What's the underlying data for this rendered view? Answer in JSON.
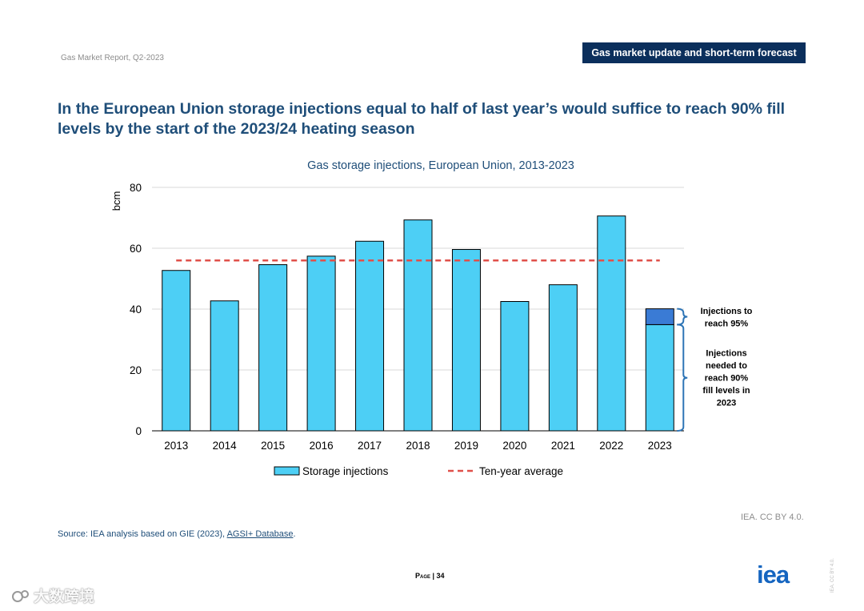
{
  "header": {
    "report_name": "Gas Market Report, Q2-2023",
    "section_badge": "Gas market update and short-term forecast"
  },
  "headline": "In the European Union storage injections equal to half of last year’s would suffice to reach 90% fill levels by the start of the 2023/24 heating season",
  "chart_data": {
    "type": "bar",
    "title": "Gas storage injections, European Union, 2013-2023",
    "ylabel": "bcm",
    "xlabel": "",
    "ylim": [
      0,
      80
    ],
    "yticks": [
      0,
      20,
      40,
      60,
      80
    ],
    "grid": true,
    "categories": [
      "2013",
      "2014",
      "2015",
      "2016",
      "2017",
      "2018",
      "2019",
      "2020",
      "2021",
      "2022",
      "2023"
    ],
    "series": [
      {
        "name": "Storage injections",
        "values": [
          52.7,
          42.7,
          54.6,
          57.4,
          62.3,
          69.3,
          59.6,
          42.5,
          48.0,
          70.6,
          34.9
        ],
        "color": "#4dcff5"
      },
      {
        "name": "Injections to reach 95%",
        "values": [
          0,
          0,
          0,
          0,
          0,
          0,
          0,
          0,
          0,
          0,
          5.2
        ],
        "color": "#3a7bd5"
      }
    ],
    "reference_line": {
      "name": "Ten-year average",
      "value": 56,
      "color": "#e0504a"
    },
    "legend": {
      "placement": "bottom",
      "items": [
        {
          "label": "Storage injections",
          "type": "bar",
          "color": "#4dcff5"
        },
        {
          "label": "Ten-year average",
          "type": "dashed-line",
          "color": "#e0504a"
        }
      ]
    },
    "annotations": [
      {
        "range": [
          34.9,
          40.1
        ],
        "lines": [
          "Injections to",
          "reach 95%"
        ]
      },
      {
        "range": [
          0,
          34.9
        ],
        "lines": [
          "Injections",
          "needed to",
          "reach 90%",
          "fill levels in",
          "2023"
        ]
      }
    ]
  },
  "footer": {
    "credit": "IEA. CC BY 4.0.",
    "source_prefix": "Source: IEA analysis based on GIE (2023), ",
    "source_link": "AGSI+ Database",
    "source_suffix": ".",
    "page_label": "Page",
    "page_sep": " | ",
    "page_number": "34",
    "logo_text": "iea",
    "side_license": "IEA. CC BY 4.0.",
    "watermark": "大数跨境"
  }
}
